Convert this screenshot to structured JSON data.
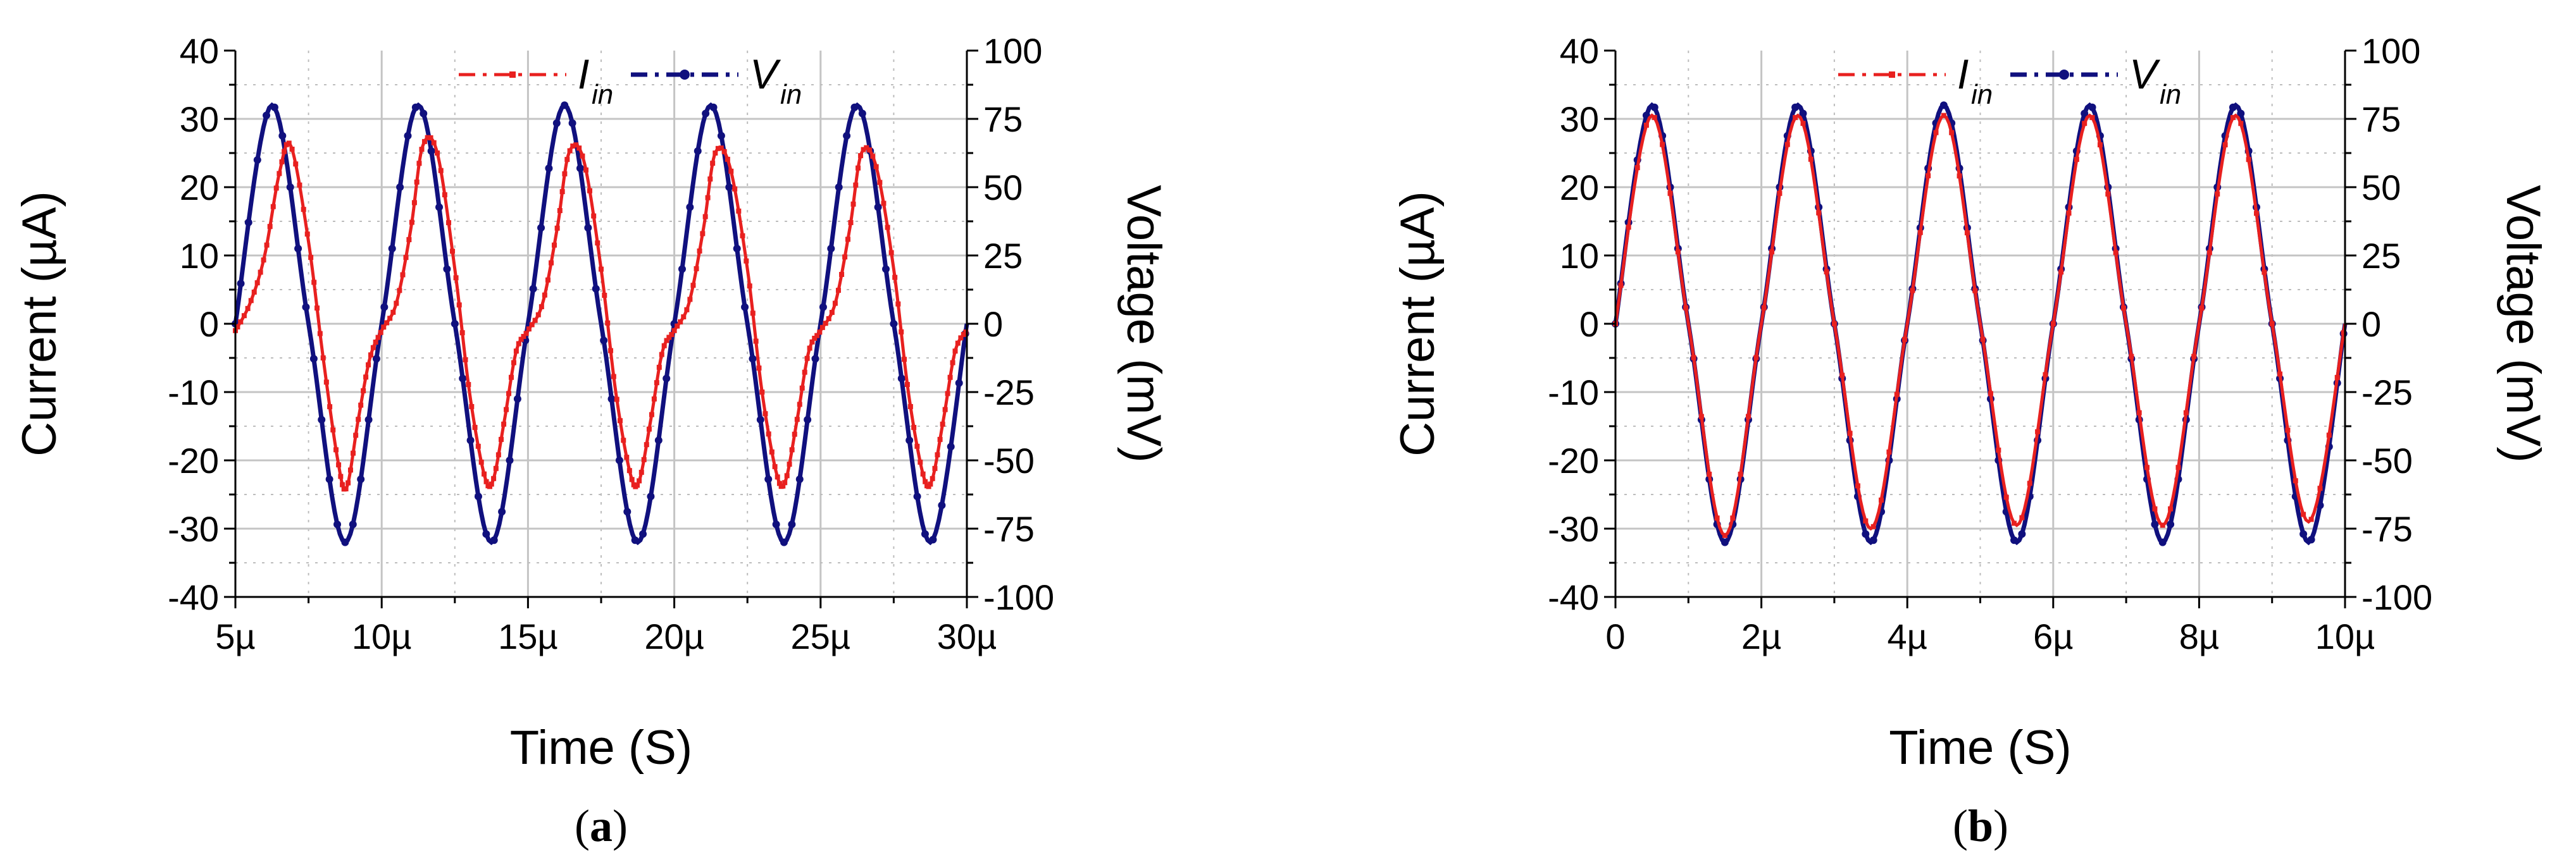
{
  "colors": {
    "current": "#e8201f",
    "voltage": "#10107e",
    "grid_major": "#c4c4c4",
    "grid_minor": "#bdbdbd",
    "axis": "#000000"
  },
  "chart_data": [
    {
      "type": "line",
      "panel_label": "a",
      "panel_label_full": "(a)",
      "xlabel": "Time (S)",
      "ylabel_left": "Current (µA)",
      "ylabel_right": "Voltage (mV)",
      "xlim": [
        5,
        30
      ],
      "x_unit": "µs",
      "ylim_left": [
        -40,
        40
      ],
      "ylim_right": [
        -100,
        100
      ],
      "x_ticks": [
        5,
        10,
        15,
        20,
        25,
        30
      ],
      "x_tick_labels": [
        "5µ",
        "10µ",
        "15µ",
        "20µ",
        "25µ",
        "30µ"
      ],
      "y_left_ticks": [
        -40,
        -30,
        -20,
        -10,
        0,
        10,
        20,
        30,
        40
      ],
      "y_left_tick_labels": [
        "-40",
        "-30",
        "-20",
        "-10",
        "0",
        "10",
        "20",
        "30",
        "40"
      ],
      "y_right_ticks": [
        -100,
        -75,
        -50,
        -25,
        0,
        25,
        50,
        75,
        100
      ],
      "y_right_tick_labels": [
        "-100",
        "-75",
        "-50",
        "-25",
        "0",
        "25",
        "50",
        "75",
        "100"
      ],
      "grid": true,
      "legend": "top",
      "legend_entries": [
        {
          "main": "I",
          "sub": "in"
        },
        {
          "main": "V",
          "sub": "in"
        }
      ],
      "series": [
        {
          "axis": "right",
          "x": [
            5.0,
            6.25,
            7.5,
            8.75,
            10.0,
            11.25,
            12.5,
            13.75,
            15.0,
            16.25,
            17.5,
            18.75,
            20.0,
            21.25,
            22.5,
            23.75,
            25.0,
            26.25,
            27.5,
            28.75,
            30.0
          ],
          "y": [
            0,
            80,
            0,
            -80,
            0,
            80,
            0,
            -80,
            0,
            80,
            0,
            -80,
            0,
            80,
            0,
            -80,
            0,
            80,
            0,
            -80,
            0
          ]
        },
        {
          "axis": "left",
          "x": [
            5.0,
            5.5,
            6.0,
            6.5,
            6.9,
            7.5,
            8.0,
            8.5,
            8.8,
            9.2,
            9.6,
            10.0,
            10.5,
            11.0,
            11.4,
            11.9,
            12.5,
            13.0,
            13.5,
            13.8,
            14.2,
            14.6,
            15.0,
            15.5,
            16.0,
            16.4,
            16.9,
            17.5,
            18.0,
            18.5,
            18.8,
            19.2,
            19.6,
            20.0,
            20.5,
            21.0,
            21.4,
            21.9,
            22.5,
            23.0,
            23.5,
            23.8,
            24.2,
            24.6,
            25.0,
            25.5,
            26.0,
            26.4,
            26.9,
            27.5,
            28.0,
            28.5,
            28.8,
            29.2,
            29.6,
            30.0
          ],
          "y": [
            -1,
            3,
            10,
            22,
            26,
            12,
            -5,
            -20,
            -24,
            -14,
            -5,
            -1,
            3,
            14,
            26,
            25,
            8,
            -10,
            -22,
            -23,
            -14,
            -4,
            -1,
            3,
            14,
            25,
            24,
            8,
            -10,
            -22,
            -23,
            -14,
            -4,
            -1,
            3,
            14,
            25,
            23,
            8,
            -10,
            -22,
            -23,
            -14,
            -4,
            -1,
            3,
            14,
            25,
            23,
            8,
            -10,
            -22,
            -23,
            -14,
            -4,
            -1
          ]
        }
      ]
    },
    {
      "type": "line",
      "panel_label": "b",
      "panel_label_full": "(b)",
      "xlabel": "Time (S)",
      "ylabel_left": "Current (µA)",
      "ylabel_right": "Voltage (mV)",
      "xlim": [
        0,
        10
      ],
      "x_unit": "µs",
      "ylim_left": [
        -40,
        40
      ],
      "ylim_right": [
        -100,
        100
      ],
      "x_ticks": [
        0,
        2,
        4,
        6,
        8,
        10
      ],
      "x_tick_labels": [
        "0",
        "2µ",
        "4µ",
        "6µ",
        "8µ",
        "10µ"
      ],
      "y_left_ticks": [
        -40,
        -30,
        -20,
        -10,
        0,
        10,
        20,
        30,
        40
      ],
      "y_left_tick_labels": [
        "-40",
        "-30",
        "-20",
        "-10",
        "0",
        "10",
        "20",
        "30",
        "40"
      ],
      "y_right_ticks": [
        -100,
        -75,
        -50,
        -25,
        0,
        25,
        50,
        75,
        100
      ],
      "y_right_tick_labels": [
        "-100",
        "-75",
        "-50",
        "-25",
        "0",
        "25",
        "50",
        "75",
        "100"
      ],
      "grid": true,
      "legend": "top",
      "legend_entries": [
        {
          "main": "I",
          "sub": "in"
        },
        {
          "main": "V",
          "sub": "in"
        }
      ],
      "series": [
        {
          "axis": "right",
          "x": [
            0,
            0.5,
            1.0,
            1.5,
            2.0,
            2.5,
            3.0,
            3.5,
            4.0,
            4.5,
            5.0,
            5.5,
            6.0,
            6.5,
            7.0,
            7.5,
            8.0,
            8.5,
            9.0,
            9.5,
            10.0
          ],
          "y": [
            0,
            80,
            0,
            -80,
            0,
            80,
            0,
            -80,
            0,
            80,
            0,
            -80,
            0,
            80,
            0,
            -80,
            0,
            80,
            0,
            -80,
            0
          ]
        },
        {
          "axis": "left",
          "x": [
            0,
            0.5,
            1.0,
            1.5,
            2.0,
            2.5,
            3.0,
            3.5,
            4.0,
            4.5,
            5.0,
            5.5,
            6.0,
            6.5,
            7.0,
            7.5,
            8.0,
            8.5,
            9.0,
            9.5,
            10.0
          ],
          "y": [
            0,
            30.5,
            0,
            -31,
            0,
            30.5,
            0,
            -30,
            0,
            30.5,
            0,
            -29.5,
            0,
            30.5,
            0,
            -29.5,
            0,
            30.5,
            0,
            -29,
            0
          ]
        }
      ]
    }
  ]
}
